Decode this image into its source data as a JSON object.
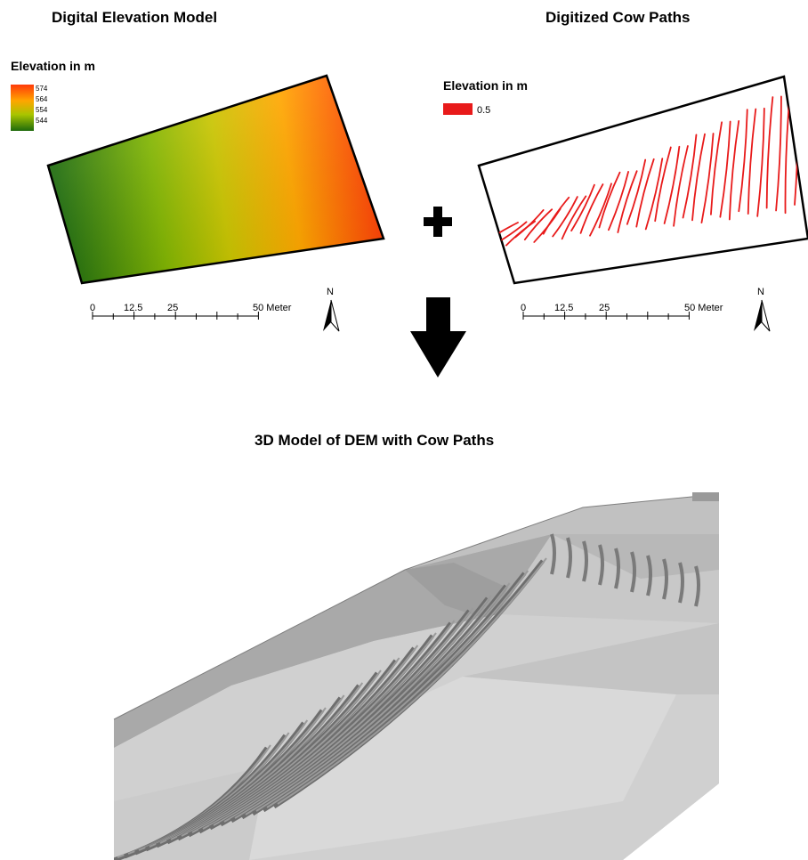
{
  "dem": {
    "title": "Digital Elevation Model",
    "legend_title": "Elevation in m",
    "legend_values": [
      "574",
      "564",
      "554",
      "544"
    ],
    "ramp_colors": [
      "#ff3a0a",
      "#ffa600",
      "#a8c400",
      "#1e6b0c"
    ],
    "scalebar": [
      "0",
      "12.5",
      "25",
      "50 Meter"
    ],
    "north": "N"
  },
  "cow_paths": {
    "title": "Digitized Cow Paths",
    "legend_title": "Elevation in m",
    "legend_value": "0.5",
    "path_color": "#e81a1a",
    "scalebar": [
      "0",
      "12.5",
      "25",
      "50 Meter"
    ],
    "north": "N"
  },
  "model3d": {
    "title": "3D Model of DEM with Cow Paths"
  }
}
